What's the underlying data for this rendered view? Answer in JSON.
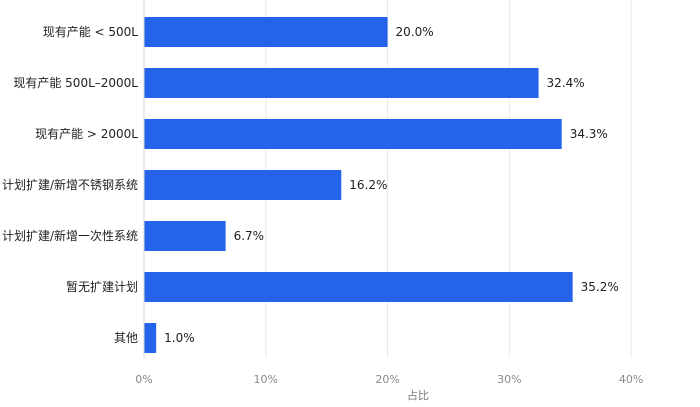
{
  "chart_data": {
    "type": "bar",
    "orientation": "horizontal",
    "categories": [
      "现有产能 < 500L",
      "现有产能 500L–2000L",
      "现有产能 > 2000L",
      "计划扩建/新增不锈钢系统",
      "计划扩建/新增一次性系统",
      "暂无扩建计划",
      "其他"
    ],
    "values": [
      20.0,
      32.4,
      34.3,
      16.2,
      6.7,
      35.2,
      1.0
    ],
    "value_labels": [
      "20.0%",
      "32.4%",
      "34.3%",
      "16.2%",
      "6.7%",
      "35.2%",
      "1.0%"
    ],
    "xlabel": "占比",
    "xlim": [
      0,
      45
    ],
    "x_ticks": [
      0,
      10,
      20,
      30,
      40
    ],
    "x_tick_labels": [
      "0%",
      "10%",
      "20%",
      "30%",
      "40%"
    ],
    "grid": true,
    "colors": {
      "bar": "#2563eb",
      "grid": "#e9e9e9",
      "text": "#222222",
      "tick_text": "#8a8a8a"
    }
  }
}
